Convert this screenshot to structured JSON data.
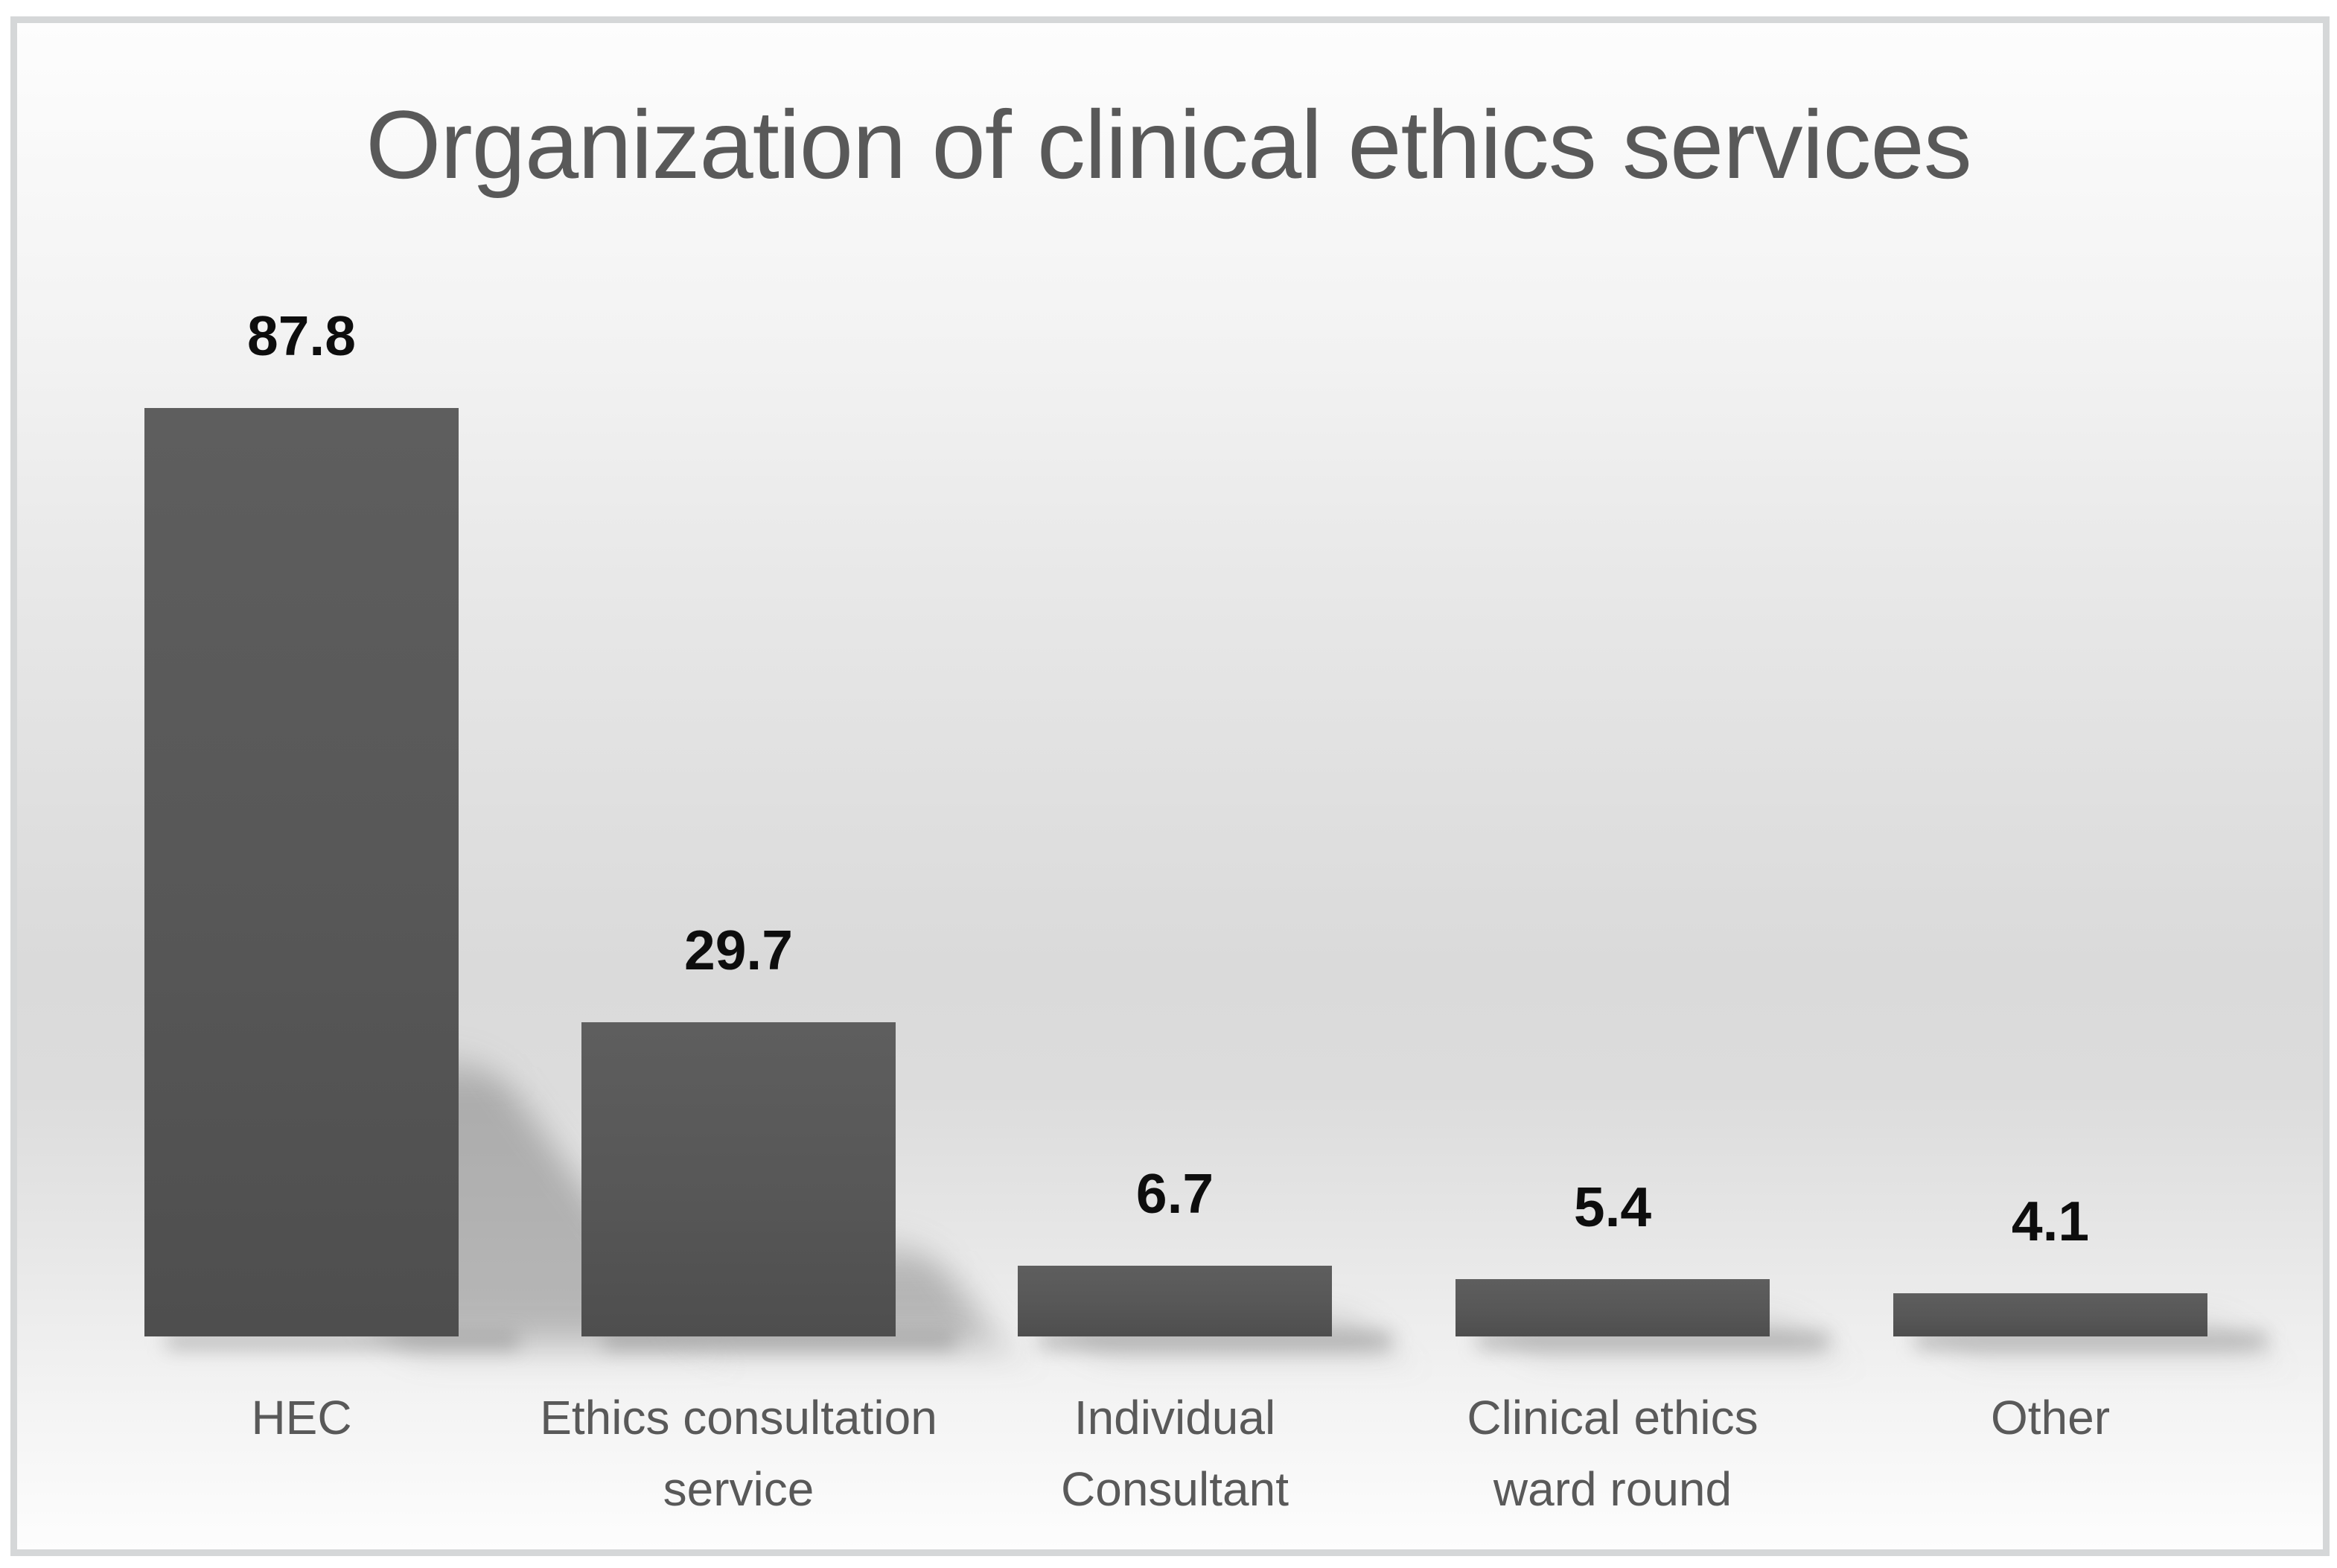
{
  "chart_data": {
    "type": "bar",
    "title": "Organization of clinical ethics services",
    "categories": [
      "HEC",
      "Ethics consultation service",
      "Individual Consultant",
      "Clinical ethics ward round",
      "Other"
    ],
    "tick_labels_display": [
      "HEC",
      "Ethics consultation\nservice",
      "Individual\nConsultant",
      "Clinical ethics\nward round",
      "Other"
    ],
    "values": [
      87.8,
      29.7,
      6.7,
      5.4,
      4.1
    ],
    "data_labels": [
      "87.8",
      "29.7",
      "6.7",
      "5.4",
      "4.1"
    ],
    "xlabel": "",
    "ylabel": "",
    "ylim": [
      0,
      95
    ],
    "gridlines": false,
    "axes_visible": false,
    "legend": null,
    "bar_color": "#595959",
    "title_color": "#595959",
    "category_label_color": "#595959",
    "value_label_color": "#0d0d0d",
    "frame_border_color": "#d5d7d8",
    "background_mid_color": "#dadada"
  }
}
